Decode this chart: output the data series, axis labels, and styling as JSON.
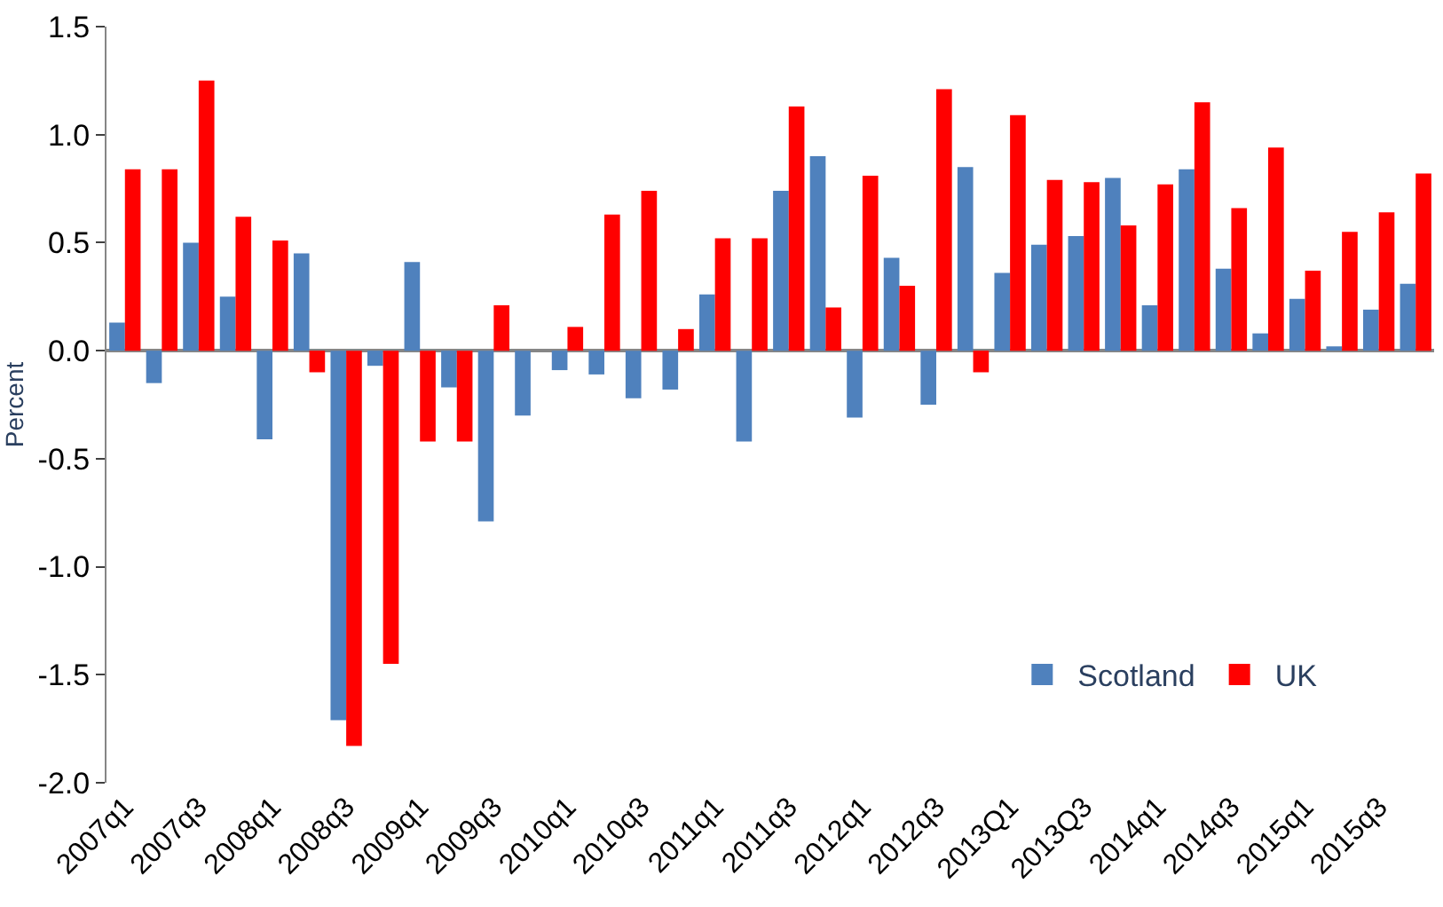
{
  "chart_data": {
    "type": "bar",
    "ylabel": "Percent",
    "categories": [
      "2007q1",
      null,
      "2007q3",
      null,
      "2008q1",
      null,
      "2008q3",
      null,
      "2009q1",
      null,
      "2009q3",
      null,
      "2010q1",
      null,
      "2010q3",
      null,
      "2011q1",
      null,
      "2011q3",
      null,
      "2012q1",
      null,
      "2012q3",
      null,
      "2013Q1",
      null,
      "2013Q3",
      null,
      "2014q1",
      null,
      "2014q3",
      null,
      "2015q1",
      null,
      "2015q3",
      null
    ],
    "series": [
      {
        "name": "Scotland",
        "color": "#4f81bd",
        "values": [
          0.13,
          -0.15,
          0.5,
          0.25,
          -0.41,
          0.45,
          -1.71,
          -0.07,
          0.41,
          -0.17,
          -0.79,
          -0.3,
          -0.09,
          -0.11,
          -0.22,
          -0.18,
          0.26,
          -0.42,
          0.74,
          0.9,
          -0.31,
          0.43,
          -0.25,
          0.85,
          0.36,
          0.49,
          0.53,
          0.8,
          0.21,
          0.84,
          0.38,
          0.08,
          0.24,
          0.02,
          0.19,
          0.31
        ]
      },
      {
        "name": "UK",
        "color": "#ff0000",
        "values": [
          0.84,
          0.84,
          1.25,
          0.62,
          0.51,
          -0.1,
          -1.83,
          -1.45,
          -0.42,
          -0.42,
          0.21,
          0.0,
          0.11,
          0.63,
          0.74,
          0.1,
          0.52,
          0.52,
          1.13,
          0.2,
          0.81,
          0.3,
          1.21,
          -0.1,
          1.09,
          0.79,
          0.78,
          0.58,
          0.77,
          1.15,
          0.66,
          0.94,
          0.37,
          0.55,
          0.64,
          0.82
        ]
      }
    ],
    "ylim": [
      -2.0,
      1.5
    ],
    "yticks": [
      {
        "value": -2.0,
        "label": "-2.0"
      },
      {
        "value": -1.5,
        "label": "-1.5"
      },
      {
        "value": -1.0,
        "label": "-1.0"
      },
      {
        "value": -0.5,
        "label": "-0.5"
      },
      {
        "value": 0.0,
        "label": "0.0"
      },
      {
        "value": 0.5,
        "label": "0.5"
      },
      {
        "value": 1.0,
        "label": "1.0"
      },
      {
        "value": 1.5,
        "label": "1.5"
      }
    ],
    "legend": "bottom right"
  }
}
